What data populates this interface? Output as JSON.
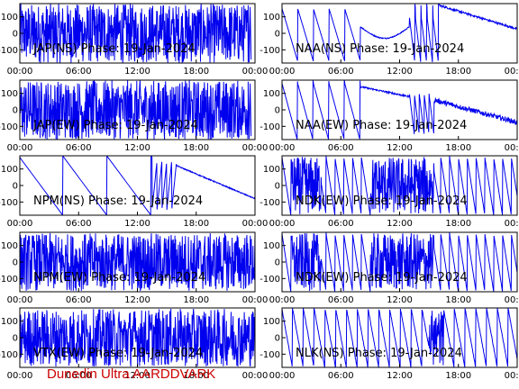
{
  "footer": "Dunedin Ultra AARDDVARK",
  "colors": {
    "trace": "#0000ee",
    "footer": "#cc0000",
    "axes": "#000000"
  },
  "chart_data": [
    {
      "type": "line",
      "title": "JAP(NS) Phase: 19-Jan-2024",
      "xlim": [
        0,
        24
      ],
      "ylim": [
        -180,
        180
      ],
      "xticks": [
        "00:00",
        "06:00",
        "12:00",
        "18:00",
        "00:00"
      ],
      "yticks": [
        "100",
        "0",
        "-100"
      ],
      "pattern": "noise_full",
      "description_of_values": "phase wraps densely across full range all day"
    },
    {
      "type": "line",
      "title": "NAA(NS) Phase: 19-Jan-2024",
      "xlim": [
        0,
        24
      ],
      "ylim": [
        -180,
        180
      ],
      "xticks": [
        "00:00",
        "06:00",
        "12:00",
        "18:00",
        "00:00"
      ],
      "yticks": [
        "100",
        "0",
        "-100"
      ],
      "pattern": "naa_ns"
    },
    {
      "type": "line",
      "title": "JAP(EW) Phase: 19-Jan-2024",
      "xlim": [
        0,
        24
      ],
      "ylim": [
        -180,
        180
      ],
      "xticks": [
        "00:00",
        "06:00",
        "12:00",
        "18:00",
        "00:00"
      ],
      "yticks": [
        "100",
        "0",
        "-100"
      ],
      "pattern": "noise_full"
    },
    {
      "type": "line",
      "title": "NAA(EW) Phase: 19-Jan-2024",
      "xlim": [
        0,
        24
      ],
      "ylim": [
        -180,
        180
      ],
      "xticks": [
        "00:00",
        "06:00",
        "12:00",
        "18:00",
        "00:00"
      ],
      "yticks": [
        "100",
        "0",
        "-100"
      ],
      "pattern": "naa_ew"
    },
    {
      "type": "line",
      "title": "NPM(NS) Phase: 19-Jan-2024",
      "xlim": [
        0,
        24
      ],
      "ylim": [
        -180,
        180
      ],
      "xticks": [
        "00:00",
        "06:00",
        "12:00",
        "18:00",
        "00:00"
      ],
      "yticks": [
        "100",
        "0",
        "-100"
      ],
      "pattern": "npm_ns"
    },
    {
      "type": "line",
      "title": "NDK(EW) Phase: 19-Jan-2024",
      "xlim": [
        0,
        24
      ],
      "ylim": [
        -180,
        180
      ],
      "xticks": [
        "00:00",
        "06:00",
        "12:00",
        "18:00",
        "00:00"
      ],
      "yticks": [
        "100",
        "0",
        "-100"
      ],
      "pattern": "ndk"
    },
    {
      "type": "line",
      "title": "NPM(EW) Phase: 19-Jan-2024",
      "xlim": [
        0,
        24
      ],
      "ylim": [
        -180,
        180
      ],
      "xticks": [
        "00:00",
        "06:00",
        "12:00",
        "18:00",
        "00:00"
      ],
      "yticks": [
        "100",
        "0",
        "-100"
      ],
      "pattern": "noise_dense"
    },
    {
      "type": "line",
      "title": "NDK(EW) Phase: 19-Jan-2024",
      "xlim": [
        0,
        24
      ],
      "ylim": [
        -180,
        180
      ],
      "xticks": [
        "00:00",
        "06:00",
        "12:00",
        "18:00",
        "00:00"
      ],
      "yticks": [
        "100",
        "0",
        "-100"
      ],
      "pattern": "ndk"
    },
    {
      "type": "line",
      "title": "VTX(EW) Phase: 19-Jan-2024",
      "xlim": [
        0,
        24
      ],
      "ylim": [
        -180,
        180
      ],
      "xticks": [
        "00:00",
        "06:00",
        "12:00",
        "18:00",
        "00:00"
      ],
      "yticks": [
        "100",
        "0",
        "-100"
      ],
      "pattern": "noise_dense"
    },
    {
      "type": "line",
      "title": "NLK(NS) Phase: 19-Jan-2024",
      "xlim": [
        0,
        24
      ],
      "ylim": [
        -180,
        180
      ],
      "xticks": [
        "00:00",
        "06:00",
        "12:00",
        "18:00",
        "00:00"
      ],
      "yticks": [
        "100",
        "0",
        "-100"
      ],
      "pattern": "nlk"
    }
  ]
}
